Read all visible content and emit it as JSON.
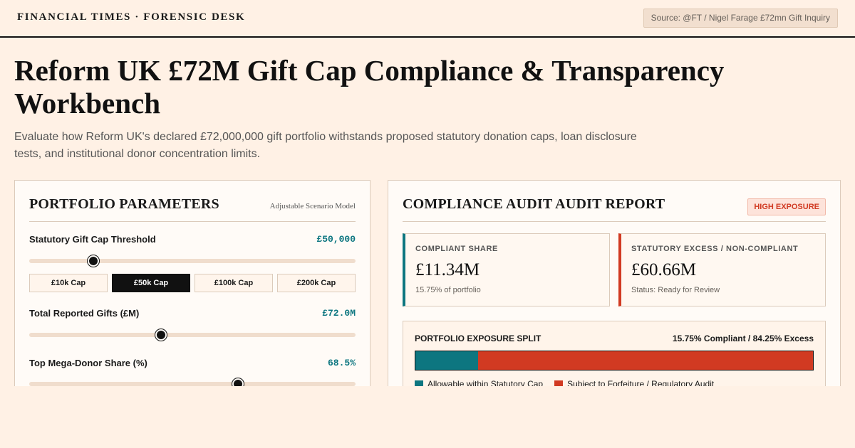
{
  "header": {
    "brand": "FINANCIAL TIMES · FORENSIC DESK",
    "source": "Source: @FT / Nigel Farage £72mn Gift Inquiry"
  },
  "page": {
    "title": "Reform UK £72M Gift Cap Compliance & Transparency Workbench",
    "subtitle": "Evaluate how Reform UK's declared £72,000,000 gift portfolio withstands proposed statutory donation caps, loan disclosure tests, and institutional donor concentration limits."
  },
  "params": {
    "title": "PORTFOLIO PARAMETERS",
    "note": "Adjustable Scenario Model",
    "gift_cap": {
      "label": "Statutory Gift Cap Threshold",
      "value": "£50,000",
      "slider_level": 0.196
    },
    "presets": [
      {
        "label": "£10k Cap",
        "active": false
      },
      {
        "label": "£50k Cap",
        "active": true
      },
      {
        "label": "£100k Cap",
        "active": false
      },
      {
        "label": "£200k Cap",
        "active": false
      }
    ],
    "total_gifts": {
      "label": "Total Reported Gifts (£M)",
      "value": "£72.0M",
      "slider_level": 0.404
    },
    "mega_donor": {
      "label": "Top Mega-Donor Share (%)",
      "value": "68.5%",
      "slider_level": 0.64
    }
  },
  "audit": {
    "title": "COMPLIANCE AUDIT AUDIT REPORT",
    "badge": "HIGH EXPOSURE",
    "compliant": {
      "label": "COMPLIANT SHARE",
      "value": "£11.34M",
      "sub": "15.75% of portfolio"
    },
    "excess": {
      "label": "STATUTORY EXCESS / NON-COMPLIANT",
      "value": "£60.66M",
      "sub": "Status: Ready for Review"
    },
    "split": {
      "title": "PORTFOLIO EXPOSURE SPLIT",
      "ratio": "15.75% Compliant / 84.25% Excess",
      "compliant_pct": 15.75,
      "legend_good": "Allowable within Statutory Cap",
      "legend_bad": "Subject to Forfeiture / Regulatory Audit"
    }
  },
  "colors": {
    "background": "#fff1e5",
    "teal": "#0d7680",
    "red": "#d13a22",
    "ink": "#111111"
  }
}
